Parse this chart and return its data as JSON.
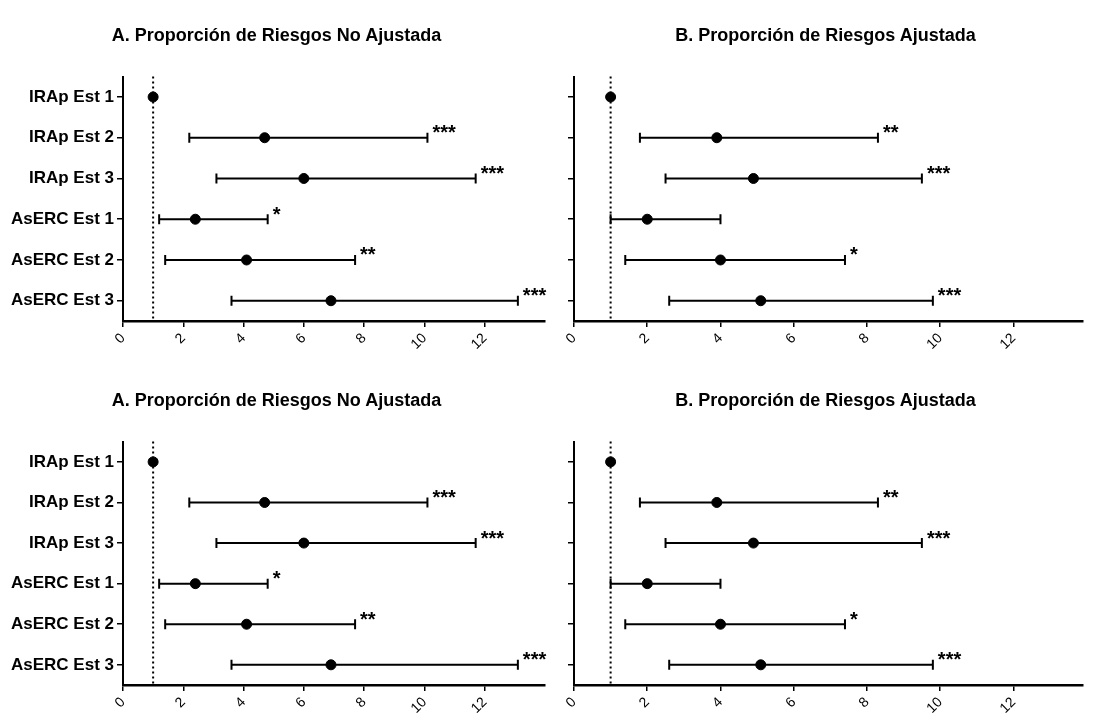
{
  "chart_data": [
    {
      "type": "scatter",
      "title": "A. Proporción de Riesgos No Ajustada",
      "orientation": "horizontal",
      "categories": [
        "IRAp Est 1",
        "IRAp Est 2",
        "IRAp Est 3",
        "AsERC Est 1",
        "AsERC Est 2",
        "AsERC Est 3"
      ],
      "values": [
        1.0,
        4.7,
        6.0,
        2.4,
        4.1,
        6.9
      ],
      "errors": [
        null,
        [
          2.2,
          10.1
        ],
        [
          3.1,
          11.7
        ],
        [
          1.2,
          4.8
        ],
        [
          1.4,
          7.7
        ],
        [
          3.6,
          13.1
        ]
      ],
      "color": "#000000",
      "marker": "circle",
      "xlim": [
        0,
        14
      ],
      "xticks": [
        0,
        2,
        4,
        6,
        8,
        10,
        12
      ],
      "grid": false,
      "legend": false,
      "ref_lines": [
        {
          "axis": "x",
          "value": 1,
          "line_style": "dotted"
        }
      ],
      "annotations": [
        {
          "text": "***",
          "x": 10.1,
          "y": "IRAp Est 2"
        },
        {
          "text": "***",
          "x": 11.7,
          "y": "IRAp Est 3"
        },
        {
          "text": "*",
          "x": 4.8,
          "y": "AsERC Est 1"
        },
        {
          "text": "**",
          "x": 7.7,
          "y": "AsERC Est 2"
        },
        {
          "text": "***",
          "x": 13.1,
          "y": "AsERC Est 3"
        }
      ]
    },
    {
      "type": "scatter",
      "title": "B. Proporción de Riesgos Ajustada",
      "orientation": "horizontal",
      "categories": [
        "IRAp Est 1",
        "IRAp Est 2",
        "IRAp Est 3",
        "AsERC Est 1",
        "AsERC Est 2",
        "AsERC Est 3"
      ],
      "tick_labels": "x",
      "values": [
        1.0,
        3.9,
        4.9,
        2.0,
        4.0,
        5.1
      ],
      "errors": [
        null,
        [
          1.8,
          8.3
        ],
        [
          2.5,
          9.5
        ],
        [
          1.0,
          4.0
        ],
        [
          1.4,
          7.4
        ],
        [
          2.6,
          9.8
        ]
      ],
      "color": "#000000",
      "marker": "circle",
      "xlim": [
        0,
        13.9
      ],
      "xticks": [
        0,
        2,
        4,
        6,
        8,
        10,
        12
      ],
      "grid": false,
      "legend": false,
      "ref_lines": [
        {
          "axis": "x",
          "value": 1,
          "line_style": "dotted"
        }
      ],
      "annotations": [
        {
          "text": "**",
          "x": 8.3,
          "y": "IRAp Est 2"
        },
        {
          "text": "***",
          "x": 9.5,
          "y": "IRAp Est 3"
        },
        {
          "text": "*",
          "x": 7.4,
          "y": "AsERC Est 2"
        },
        {
          "text": "***",
          "x": 9.8,
          "y": "AsERC Est 3"
        }
      ]
    },
    {
      "type": "scatter",
      "title": "A. Proporción de Riesgos No Ajustada",
      "orientation": "horizontal",
      "categories": [
        "IRAp Est 1",
        "IRAp Est 2",
        "IRAp Est 3",
        "AsERC Est 1",
        "AsERC Est 2",
        "AsERC Est 3"
      ],
      "values": [
        1.0,
        4.7,
        6.0,
        2.4,
        4.1,
        6.9
      ],
      "errors": [
        null,
        [
          2.2,
          10.1
        ],
        [
          3.1,
          11.7
        ],
        [
          1.2,
          4.8
        ],
        [
          1.4,
          7.7
        ],
        [
          3.6,
          13.1
        ]
      ],
      "color": "#000000",
      "marker": "circle",
      "xlim": [
        0,
        14
      ],
      "xticks": [
        0,
        2,
        4,
        6,
        8,
        10,
        12
      ],
      "grid": false,
      "legend": false,
      "ref_lines": [
        {
          "axis": "x",
          "value": 1,
          "line_style": "dotted"
        }
      ],
      "annotations": [
        {
          "text": "***",
          "x": 10.1,
          "y": "IRAp Est 2"
        },
        {
          "text": "***",
          "x": 11.7,
          "y": "IRAp Est 3"
        },
        {
          "text": "*",
          "x": 4.8,
          "y": "AsERC Est 1"
        },
        {
          "text": "**",
          "x": 7.7,
          "y": "AsERC Est 2"
        },
        {
          "text": "***",
          "x": 13.1,
          "y": "AsERC Est 3"
        }
      ]
    },
    {
      "type": "scatter",
      "title": "B. Proporción de Riesgos Ajustada",
      "orientation": "horizontal",
      "categories": [
        "IRAp Est 1",
        "IRAp Est 2",
        "IRAp Est 3",
        "AsERC Est 1",
        "AsERC Est 2",
        "AsERC Est 3"
      ],
      "tick_labels": "x",
      "values": [
        1.0,
        3.9,
        4.9,
        2.0,
        4.0,
        5.1
      ],
      "errors": [
        null,
        [
          1.8,
          8.3
        ],
        [
          2.5,
          9.5
        ],
        [
          1.0,
          4.0
        ],
        [
          1.4,
          7.4
        ],
        [
          2.6,
          9.8
        ]
      ],
      "color": "#000000",
      "marker": "circle",
      "xlim": [
        0,
        13.9
      ],
      "xticks": [
        0,
        2,
        4,
        6,
        8,
        10,
        12
      ],
      "grid": false,
      "legend": false,
      "ref_lines": [
        {
          "axis": "x",
          "value": 1,
          "line_style": "dotted"
        }
      ],
      "annotations": [
        {
          "text": "**",
          "x": 8.3,
          "y": "IRAp Est 2"
        },
        {
          "text": "***",
          "x": 9.5,
          "y": "IRAp Est 3"
        },
        {
          "text": "*",
          "x": 7.4,
          "y": "AsERC Est 2"
        },
        {
          "text": "***",
          "x": 9.8,
          "y": "AsERC Est 3"
        }
      ]
    }
  ]
}
